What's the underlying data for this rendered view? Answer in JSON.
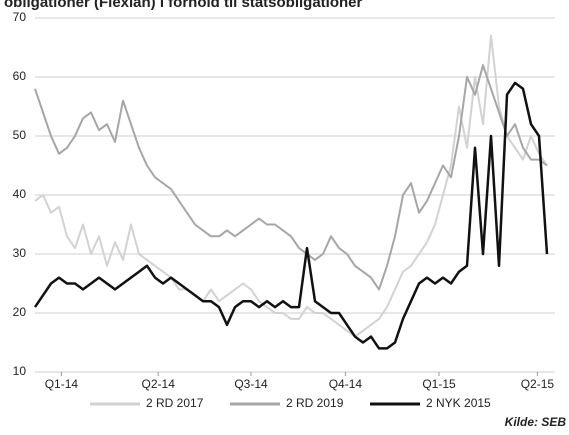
{
  "chart_data": {
    "type": "line",
    "title": "obligationer (Flexlån) i forhold til statsobligationer",
    "source": "Kilde: SEB",
    "xlim": [
      0,
      65
    ],
    "xticks": [
      {
        "value": 3.3,
        "label": "Q1-14"
      },
      {
        "value": 15.4,
        "label": "Q2-14"
      },
      {
        "value": 27,
        "label": "Q3-14"
      },
      {
        "value": 38.8,
        "label": "Q4-14"
      },
      {
        "value": 50.5,
        "label": "Q1-15"
      },
      {
        "value": 62.8,
        "label": "Q2-15"
      }
    ],
    "ylim": [
      10,
      70
    ],
    "yticks": [
      10,
      20,
      30,
      40,
      50,
      60,
      70
    ],
    "grid": true,
    "series": [
      {
        "name": "2 RD  2017",
        "color": "#d2d2d2",
        "values": [
          39,
          40,
          37,
          38,
          33,
          31,
          35,
          30,
          33,
          28,
          32,
          29,
          35,
          30,
          29,
          28,
          27,
          26,
          24,
          24,
          23,
          22,
          24,
          22,
          23,
          24,
          25,
          24,
          22,
          21,
          20,
          20,
          19,
          19,
          21,
          20,
          20,
          19,
          18,
          17,
          16,
          17,
          18,
          19,
          21,
          24,
          27,
          28,
          30,
          32,
          35,
          40,
          45,
          55,
          48,
          60,
          52,
          67,
          55,
          50,
          48,
          46,
          50,
          47,
          45
        ]
      },
      {
        "name": "2 RD  2019",
        "color": "#a6a6a6",
        "values": [
          58,
          54,
          50,
          47,
          48,
          50,
          53,
          54,
          51,
          52,
          49,
          56,
          52,
          48,
          45,
          43,
          42,
          41,
          39,
          37,
          35,
          34,
          33,
          33,
          34,
          33,
          34,
          35,
          36,
          35,
          35,
          34,
          33,
          31,
          30,
          29,
          30,
          33,
          31,
          30,
          28,
          27,
          26,
          24,
          28,
          33,
          40,
          42,
          37,
          39,
          42,
          45,
          43,
          50,
          60,
          57,
          62,
          58,
          54,
          50,
          52,
          48,
          46,
          46,
          45
        ]
      },
      {
        "name": "2 NYK  2015",
        "color": "#111111",
        "values": [
          21,
          23,
          25,
          26,
          25,
          25,
          24,
          25,
          26,
          25,
          24,
          25,
          26,
          27,
          28,
          26,
          25,
          26,
          25,
          24,
          23,
          22,
          22,
          21,
          18,
          21,
          22,
          22,
          21,
          22,
          21,
          22,
          21,
          21,
          31,
          22,
          21,
          20,
          20,
          18,
          16,
          15,
          16,
          14,
          14,
          15,
          19,
          22,
          25,
          26,
          25,
          26,
          25,
          27,
          28,
          48,
          30,
          50,
          28,
          57,
          59,
          58,
          52,
          50,
          30
        ]
      }
    ]
  }
}
